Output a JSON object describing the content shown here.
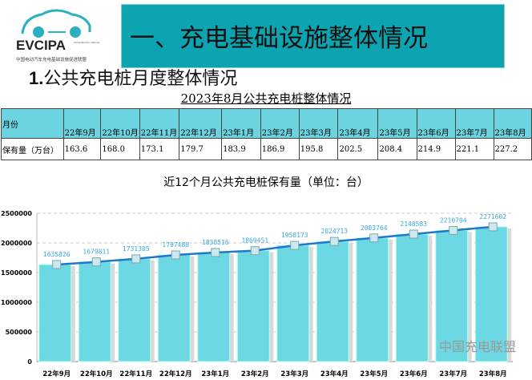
{
  "logo": {
    "text": "EVCIPA",
    "subtitle_en": "China Electric Vehicle Charging Infrastructure Promotion Alliance",
    "subtitle_cn": "中国电动汽车充电基础设施促进联盟"
  },
  "banner": {
    "title": "一、充电基础设施整体情况"
  },
  "heading": {
    "num": "1.",
    "text": "公共充电桩月度整体情况"
  },
  "table": {
    "title": "2023年8月公共充电桩整体情况",
    "row_headers": [
      "月份",
      "保有量（万台）"
    ],
    "months": [
      "22年9月",
      "22年10月",
      "22年11月",
      "22年12月",
      "23年1月",
      "23年2月",
      "23年3月",
      "23年4月",
      "23年5月",
      "23年6月",
      "23年7月",
      "23年8月"
    ],
    "values": [
      "163.6",
      "168.0",
      "173.1",
      "179.7",
      "183.9",
      "186.9",
      "195.8",
      "202.5",
      "208.4",
      "214.9",
      "221.1",
      "227.2"
    ]
  },
  "chart_data": {
    "type": "bar+line",
    "title": "近12个月公共充电桩保有量（单位：台）",
    "categories": [
      "22年9月",
      "22年10月",
      "22年11月",
      "22年12月",
      "23年1月",
      "23年2月",
      "23年3月",
      "23年4月",
      "23年5月",
      "23年6月",
      "23年7月",
      "23年8月"
    ],
    "values": [
      1635826,
      1679811,
      1731305,
      1797488,
      1838516,
      1869451,
      1958173,
      2024713,
      2083764,
      2148583,
      2210704,
      2271602
    ],
    "ylim": [
      0,
      2500000
    ],
    "yticks": [
      "0",
      "500000",
      "1000000",
      "1500000",
      "2000000",
      "2500000"
    ],
    "grid": true,
    "bar_color": "#6cd8e4",
    "line_color": "#1f78c8",
    "label_color": "#3aa8e0"
  },
  "watermark": "中国充电联盟"
}
